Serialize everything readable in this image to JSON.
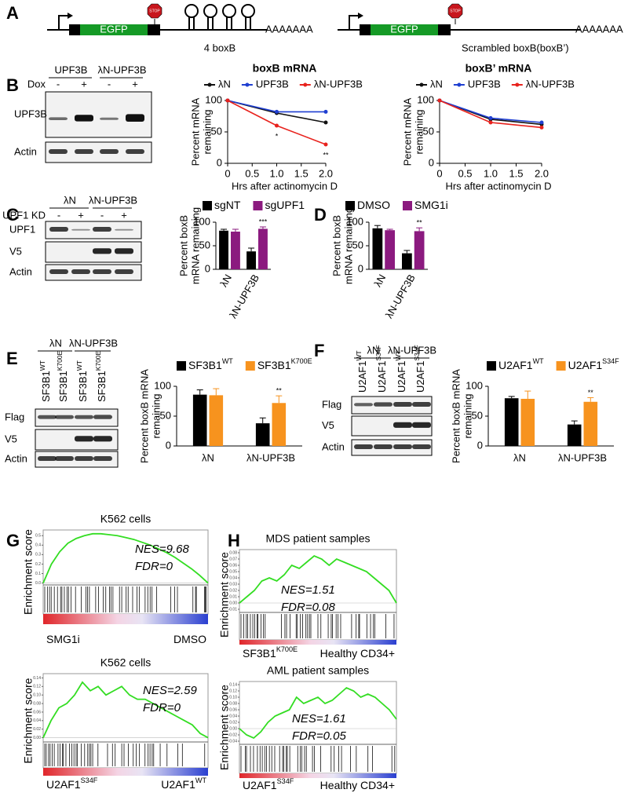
{
  "panel_labels": [
    "A",
    "B",
    "C",
    "D",
    "E",
    "F",
    "G",
    "H"
  ],
  "diagram": {
    "construct_1": {
      "gene": "EGFP",
      "stop": "STOP",
      "polyA": "AAAAAAA",
      "label": "4 boxB"
    },
    "construct_2": {
      "gene": "EGFP",
      "stop": "STOP",
      "polyA": "AAAAAAA",
      "label": "Scrambled boxB(boxB’)"
    }
  },
  "blots": {
    "B": {
      "groups": [
        "UPF3B",
        "λN-UPF3B"
      ],
      "condition": "Dox",
      "lanes": [
        "-",
        "+",
        "-",
        "+"
      ],
      "rows": [
        "UPF3B",
        "Actin"
      ]
    },
    "C": {
      "groups": [
        "λN",
        "λN-UPF3B"
      ],
      "condition": "UPF1 KD",
      "lanes": [
        "-",
        "+",
        "-",
        "+"
      ],
      "rows": [
        "UPF1",
        "V5",
        "Actin"
      ]
    },
    "E": {
      "groups": [
        "λN",
        "λN-UPF3B"
      ],
      "lanes": [
        {
          "text": "SF3B1",
          "sup": "WT"
        },
        {
          "text": "SF3B1",
          "sup": "K700E"
        },
        {
          "text": "SF3B1",
          "sup": "WT"
        },
        {
          "text": "SF3B1",
          "sup": "K700E"
        }
      ],
      "rows": [
        "Flag",
        "V5",
        "Actin"
      ]
    },
    "F": {
      "groups": [
        "λN",
        "λN-UPF3B"
      ],
      "lanes": [
        {
          "text": "U2AF1",
          "sup": "WT"
        },
        {
          "text": "U2AF1",
          "sup": "S34F"
        },
        {
          "text": "U2AF1",
          "sup": "WT"
        },
        {
          "text": "U2AF1",
          "sup": "S34F"
        }
      ],
      "rows": [
        "Flag",
        "V5",
        "Actin"
      ]
    }
  },
  "chart_data": [
    {
      "type": "line",
      "title": "boxB mRNA",
      "x": [
        0,
        1,
        2
      ],
      "xlim": [
        0,
        2
      ],
      "xticks": [
        0,
        0.5,
        {
          "value": 1,
          "label": "1.0"
        },
        1.5,
        {
          "value": 2,
          "label": "2.0"
        }
      ],
      "ylim": [
        0,
        100
      ],
      "yticks": [
        0,
        50,
        100
      ],
      "xlabel": "Hrs after actinomycin D",
      "ylabel": [
        "Percent mRNA",
        "remaining"
      ],
      "series": [
        {
          "name": "λN",
          "color": "#111111",
          "values": [
            100,
            80,
            65
          ]
        },
        {
          "name": "UPF3B",
          "color": "#1f3fd1",
          "values": [
            100,
            82,
            82
          ]
        },
        {
          "name": "λN-UPF3B",
          "color": "#e8221d",
          "values": [
            100,
            60,
            30
          ]
        }
      ],
      "annotations": [
        "*",
        "**"
      ]
    },
    {
      "type": "line",
      "title": "boxB’ mRNA",
      "x": [
        0,
        1,
        2
      ],
      "xlim": [
        0,
        2
      ],
      "xticks": [
        0,
        0.5,
        {
          "value": 1,
          "label": "1.0"
        },
        1.5,
        {
          "value": 2,
          "label": "2.0"
        }
      ],
      "ylim": [
        0,
        100
      ],
      "yticks": [
        0,
        50,
        100
      ],
      "xlabel": "Hrs after actinomycin D",
      "ylabel": [
        "Percent mRNA",
        "remaining"
      ],
      "series": [
        {
          "name": "λN",
          "color": "#111111",
          "values": [
            100,
            70,
            62
          ]
        },
        {
          "name": "UPF3B",
          "color": "#1f3fd1",
          "values": [
            100,
            72,
            65
          ]
        },
        {
          "name": "λN-UPF3B",
          "color": "#e8221d",
          "values": [
            100,
            65,
            57
          ]
        }
      ],
      "annotations": []
    },
    {
      "type": "bar",
      "categories": [
        "λN",
        "λN-UPF3B"
      ],
      "rotate_labels": true,
      "ylim": [
        0,
        100
      ],
      "yticks": [
        0,
        50,
        100
      ],
      "ylabel": [
        "Percent boxB",
        "mRNA remaining"
      ],
      "series": [
        {
          "name": "sgNT",
          "color": "#000000",
          "values": [
            82,
            38
          ],
          "errors": [
            3,
            7
          ]
        },
        {
          "name": "sgUPF1",
          "color": "#8b1a7f",
          "values": [
            80,
            86
          ],
          "errors": [
            5,
            4
          ]
        }
      ],
      "annotation": "***"
    },
    {
      "type": "bar",
      "categories": [
        "λN",
        "λN-UPF3B"
      ],
      "rotate_labels": true,
      "ylim": [
        0,
        100
      ],
      "yticks": [
        0,
        50,
        100
      ],
      "ylabel": [
        "Percent boxB",
        "mRNA remaining"
      ],
      "series": [
        {
          "name": "DMSO",
          "color": "#000000",
          "values": [
            87,
            34
          ],
          "errors": [
            6,
            6
          ]
        },
        {
          "name": "SMG1i",
          "color": "#8b1a7f",
          "values": [
            83,
            81
          ],
          "errors": [
            2,
            7
          ]
        }
      ],
      "annotation": "**"
    },
    {
      "type": "bar",
      "categories": [
        "λN",
        "λN-UPF3B"
      ],
      "rotate_labels": false,
      "ylim": [
        0,
        100
      ],
      "yticks": [
        0,
        50,
        100
      ],
      "ylabel": [
        "Percent boxB mRNA",
        "remaining"
      ],
      "series": [
        {
          "name": "SF3B1",
          "name_sup": "WT",
          "color": "#000000",
          "values": [
            86,
            38
          ],
          "errors": [
            8,
            9
          ]
        },
        {
          "name": "SF3B1",
          "name_sup": "K700E",
          "color": "#f7931e",
          "values": [
            85,
            72
          ],
          "errors": [
            11,
            12
          ]
        }
      ],
      "annotation": "**"
    },
    {
      "type": "bar",
      "categories": [
        "λN",
        "λN-UPF3B"
      ],
      "rotate_labels": false,
      "ylim": [
        0,
        100
      ],
      "yticks": [
        0,
        50,
        100
      ],
      "ylabel": [
        "Percent boxB mRNA",
        "remaining"
      ],
      "series": [
        {
          "name": "U2AF1",
          "name_sup": "WT",
          "color": "#000000",
          "values": [
            80,
            36
          ],
          "errors": [
            3,
            6
          ]
        },
        {
          "name": "U2AF1",
          "name_sup": "S34F",
          "color": "#f7931e",
          "values": [
            79,
            74
          ],
          "errors": [
            13,
            7
          ]
        }
      ],
      "annotation": "**"
    },
    {
      "type": "gsea",
      "title": "K562 cells",
      "ylabel": "Enrichment score",
      "ylim": [
        -0.02,
        0.56
      ],
      "yticks": [
        {
          "value": 0,
          "label": "0.0"
        },
        0.1,
        0.2,
        0.3,
        0.4,
        0.5
      ],
      "values": [
        0,
        0.2,
        0.33,
        0.42,
        0.47,
        0.5,
        0.52,
        0.52,
        0.51,
        0.5,
        0.48,
        0.46,
        0.43,
        0.4,
        0.36,
        0.32,
        0.27,
        0.21,
        0.15,
        0.08,
        0
      ],
      "annotations": [
        "NES=9.68",
        "FDR=0"
      ],
      "left_label": {
        "text": "SMG1i"
      },
      "right_label": {
        "text": "DMSO"
      }
    },
    {
      "type": "gsea",
      "title": "K562 cells",
      "ylabel": "Enrichment score",
      "ylim": [
        -0.01,
        0.15
      ],
      "yticks": [
        {
          "value": 0,
          "label": "0.00"
        },
        0.02,
        0.04,
        0.06,
        0.08,
        {
          "value": 0.1,
          "label": "0.10"
        },
        0.12,
        0.14
      ],
      "values": [
        0,
        0.04,
        0.07,
        0.08,
        0.1,
        0.13,
        0.11,
        0.12,
        0.1,
        0.11,
        0.12,
        0.1,
        0.09,
        0.09,
        0.08,
        0.07,
        0.06,
        0.05,
        0.04,
        0.03,
        0.01,
        0
      ],
      "annotations": [
        "NES=2.59",
        "FDR=0"
      ],
      "left_label": {
        "text": "U2AF1",
        "sup": "S34F"
      },
      "right_label": {
        "text": "U2AF1",
        "sup": "WT"
      }
    },
    {
      "type": "gsea",
      "title": "MDS patient samples",
      "ylabel": "Enrichment score",
      "ylim": [
        -0.015,
        0.085
      ],
      "yticks": [
        -0.01,
        {
          "value": 0,
          "label": "0.00"
        },
        0.01,
        0.02,
        0.03,
        0.04,
        0.05,
        0.06,
        0.07,
        0.08
      ],
      "values": [
        0,
        0.01,
        0.02,
        0.035,
        0.04,
        0.035,
        0.045,
        0.06,
        0.055,
        0.065,
        0.075,
        0.07,
        0.06,
        0.07,
        0.065,
        0.06,
        0.055,
        0.05,
        0.04,
        0.03,
        0.02,
        0
      ],
      "annotations": [
        "NES=1.51",
        "FDR=0.08"
      ],
      "left_label": {
        "text": "SF3B1",
        "sup": "K700E"
      },
      "right_label": {
        "text": "Healthy CD34+"
      }
    },
    {
      "type": "gsea",
      "title": "AML patient samples",
      "ylabel": "Enrichment score",
      "ylim": [
        -0.05,
        0.15
      ],
      "yticks": [
        -0.04,
        -0.02,
        {
          "value": 0,
          "label": "0.00"
        },
        0.02,
        0.04,
        0.06,
        0.08,
        {
          "value": 0.1,
          "label": "0.10"
        },
        0.12,
        0.14
      ],
      "values": [
        0,
        -0.02,
        -0.03,
        -0.01,
        0.02,
        0.04,
        0.05,
        0.06,
        0.1,
        0.08,
        0.09,
        0.1,
        0.08,
        0.09,
        0.11,
        0.13,
        0.12,
        0.1,
        0.11,
        0.1,
        0.08,
        0.06,
        0.03
      ],
      "annotations": [
        "NES=1.61",
        "FDR=0.05"
      ],
      "left_label": {
        "text": "U2AF1",
        "sup": "S34F"
      },
      "right_label": {
        "text": "Healthy CD34+"
      }
    }
  ]
}
